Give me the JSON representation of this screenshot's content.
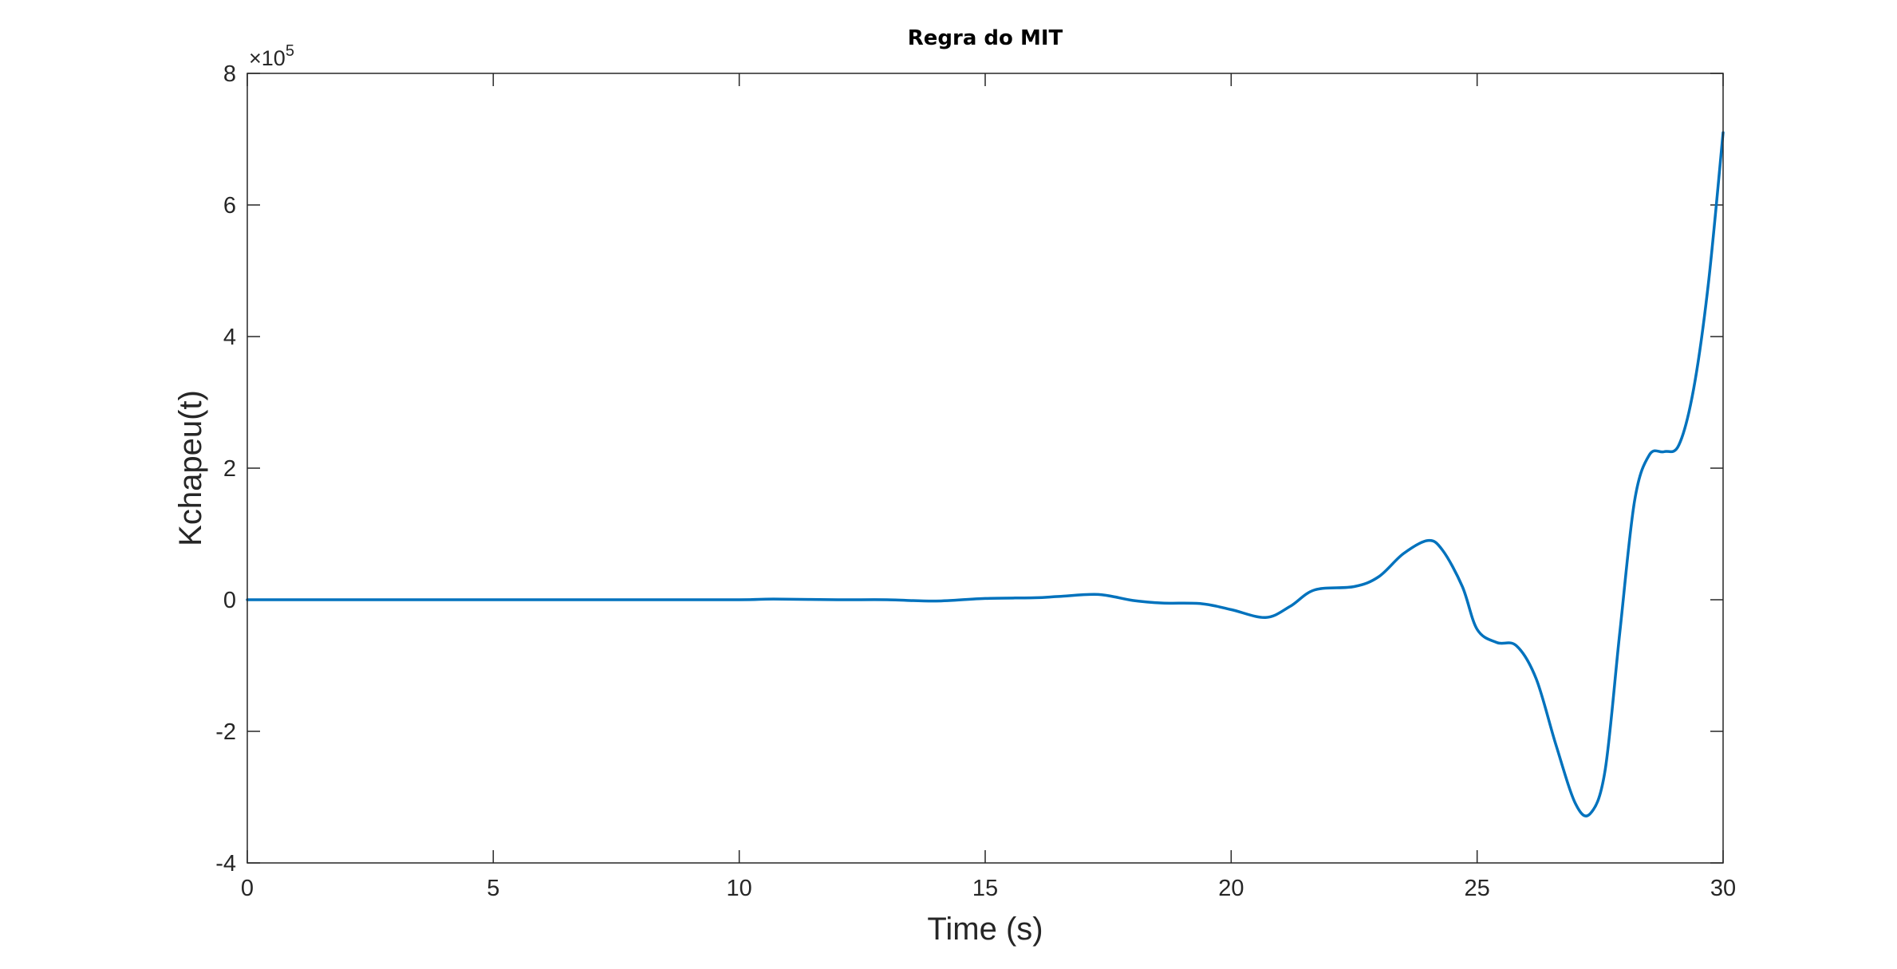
{
  "chart_data": {
    "type": "line",
    "title": "Regra do MIT",
    "xlabel": "Time (s)",
    "ylabel": "Kchapeu(t)",
    "y_exponent_label": "×10",
    "y_exponent_power": "5",
    "xlim": [
      0,
      30
    ],
    "ylim": [
      -4,
      8
    ],
    "x_ticks": [
      0,
      5,
      10,
      15,
      20,
      25,
      30
    ],
    "x_tick_labels": [
      "0",
      "5",
      "10",
      "15",
      "20",
      "25",
      "30"
    ],
    "y_ticks": [
      -4,
      -2,
      0,
      2,
      4,
      6,
      8
    ],
    "y_tick_labels": [
      "-4",
      "-2",
      "0",
      "2",
      "4",
      "6",
      "8"
    ],
    "grid": false,
    "line_color": "#0072BD",
    "series": [
      {
        "x": [
          0,
          2,
          4,
          6,
          8,
          10,
          10.7,
          12,
          13,
          14,
          15,
          16,
          16.5,
          17.3,
          18,
          18.6,
          19.4,
          20,
          20.7,
          21.2,
          21.7,
          22.5,
          23,
          23.5,
          24,
          24.3,
          24.7,
          25,
          25.4,
          25.8,
          26.2,
          26.6,
          27,
          27.3,
          27.6,
          27.9,
          28.2,
          28.5,
          28.8,
          29.1,
          29.4,
          29.7,
          30
        ],
        "y": [
          0,
          0,
          0,
          0,
          0,
          0,
          0.01,
          0,
          0,
          -0.02,
          0.02,
          0.03,
          0.05,
          0.08,
          -0.01,
          -0.05,
          -0.06,
          -0.15,
          -0.27,
          -0.1,
          0.15,
          0.2,
          0.35,
          0.7,
          0.9,
          0.75,
          0.2,
          -0.45,
          -0.65,
          -0.7,
          -1.2,
          -2.2,
          -3.1,
          -3.25,
          -2.6,
          -0.5,
          1.5,
          2.2,
          2.25,
          2.35,
          3.2,
          4.8,
          7.1
        ]
      }
    ]
  }
}
